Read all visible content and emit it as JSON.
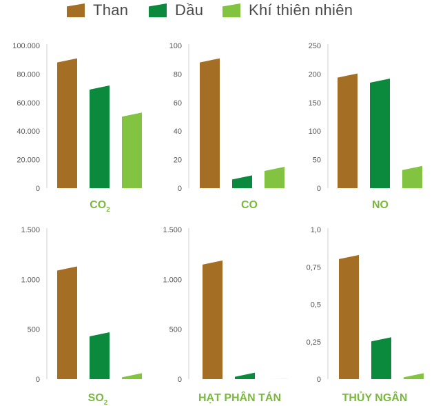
{
  "legend": [
    {
      "label": "Than",
      "color": "#a46f25"
    },
    {
      "label": "Dầu",
      "color": "#0b8a3e"
    },
    {
      "label": "Khí thiên nhiên",
      "color": "#82c341"
    }
  ],
  "chart_data": [
    {
      "type": "bar",
      "title": "CO",
      "title_subscript": "2",
      "categories": [
        "Than",
        "Dầu",
        "Khí thiên nhiên"
      ],
      "values": [
        91000,
        72000,
        53000
      ],
      "ylim": [
        0,
        100000
      ],
      "yticks": [
        0,
        20000,
        40000,
        60000,
        80000,
        100000
      ],
      "ytick_labels": [
        "0",
        "20.000",
        "40.000",
        "60.000",
        "80.000",
        "100.000"
      ]
    },
    {
      "type": "bar",
      "title": "CO",
      "title_subscript": "",
      "categories": [
        "Than",
        "Dầu",
        "Khí thiên nhiên"
      ],
      "values": [
        91,
        9,
        15
      ],
      "ylim": [
        0,
        100
      ],
      "yticks": [
        0,
        20,
        40,
        60,
        80,
        100
      ],
      "ytick_labels": [
        "0",
        "20",
        "40",
        "60",
        "80",
        "100"
      ]
    },
    {
      "type": "bar",
      "title": "NO",
      "title_subscript": "",
      "categories": [
        "Than",
        "Dầu",
        "Khí thiên nhiên"
      ],
      "values": [
        201,
        192,
        39
      ],
      "ylim": [
        0,
        250
      ],
      "yticks": [
        0,
        50,
        100,
        150,
        200,
        250
      ],
      "ytick_labels": [
        "0",
        "50",
        "100",
        "150",
        "200",
        "250"
      ]
    },
    {
      "type": "bar",
      "title": "SO",
      "title_subscript": "2",
      "categories": [
        "Than",
        "Dầu",
        "Khí thiên nhiên"
      ],
      "values": [
        1130,
        470,
        60
      ],
      "ylim": [
        0,
        1500
      ],
      "yticks": [
        0,
        500,
        1000,
        1500
      ],
      "ytick_labels": [
        "0",
        "500",
        "1.000",
        "1.500"
      ]
    },
    {
      "type": "bar",
      "title": "HẠT PHÂN TÁN",
      "title_subscript": "",
      "categories": [
        "Than",
        "Dầu",
        "Khí thiên nhiên"
      ],
      "values": [
        1190,
        65,
        1
      ],
      "ylim": [
        0,
        1500
      ],
      "yticks": [
        0,
        500,
        1000,
        1500
      ],
      "ytick_labels": [
        "0",
        "500",
        "1.000",
        "1.500"
      ]
    },
    {
      "type": "bar",
      "title": "THỦY NGÂN",
      "title_subscript": "",
      "categories": [
        "Than",
        "Dầu",
        "Khí thiên nhiên"
      ],
      "values": [
        0.83,
        0.28,
        0.04
      ],
      "ylim": [
        0,
        1
      ],
      "yticks": [
        0,
        0.25,
        0.5,
        0.75,
        1
      ],
      "ytick_labels": [
        "0",
        "0,25",
        "0,5",
        "0,75",
        "1,0"
      ]
    }
  ]
}
